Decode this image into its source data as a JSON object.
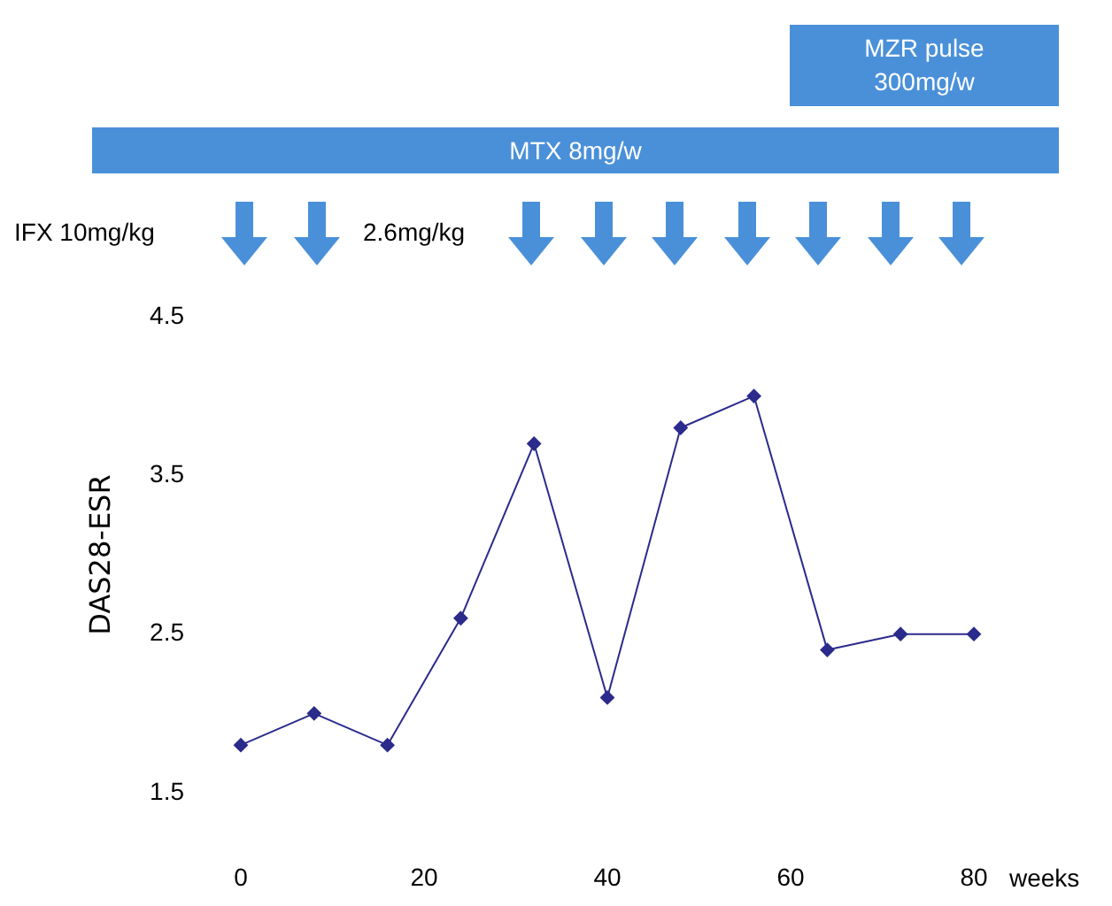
{
  "chart_data": {
    "type": "line",
    "xlabel": "weeks",
    "ylabel": "DAS28-ESR",
    "x": [
      0,
      8,
      16,
      24,
      32,
      40,
      48,
      56,
      64,
      72,
      80
    ],
    "series": [
      {
        "color": "#2b2b8c",
        "values": [
          1.8,
          2.0,
          1.8,
          2.6,
          3.7,
          2.1,
          3.8,
          4.0,
          2.4,
          2.5,
          2.5
        ]
      }
    ],
    "xlim": [
      0,
      80
    ],
    "xticks": [
      0,
      20,
      40,
      60,
      80
    ],
    "ylim": [
      1.5,
      4.5
    ],
    "yticks": [
      1.5,
      2.5,
      3.5,
      4.5
    ],
    "grid": false,
    "legend": false,
    "marker": "diamond",
    "line_style": "solid",
    "annotations": [
      "MZR pulse 300mg/w",
      "MTX 8mg/w",
      "IFX 10mg/kg",
      "2.6mg/kg"
    ]
  }
}
